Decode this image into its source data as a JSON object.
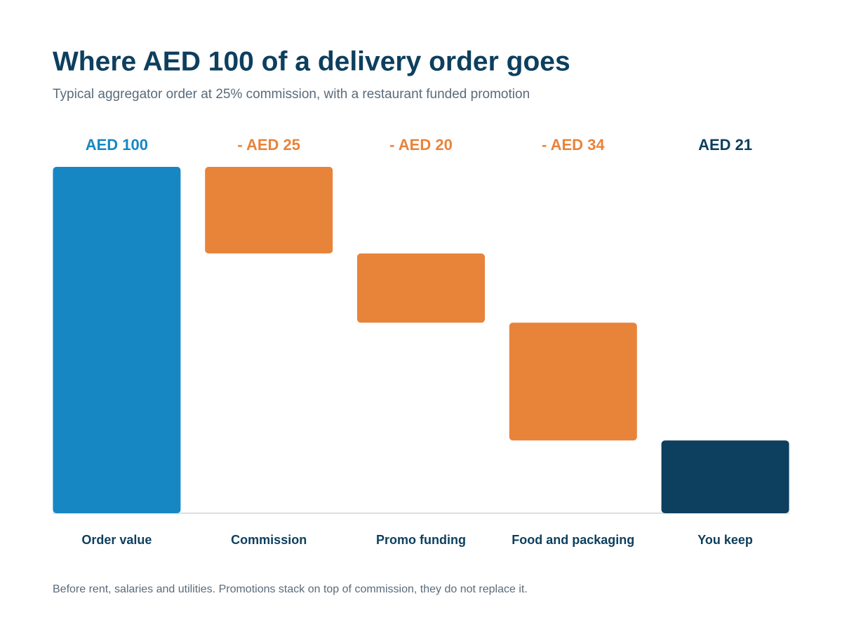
{
  "chart_data": {
    "type": "waterfall",
    "title": "Where AED 100 of a delivery order goes",
    "subtitle": "Typical aggregator order at 25% commission, with a restaurant funded promotion",
    "categories": [
      "Order value",
      "Commission",
      "Promo funding",
      "Food and packaging",
      "You keep"
    ],
    "values": [
      100,
      -25,
      -20,
      -34,
      21
    ],
    "value_labels": [
      "AED 100",
      "- AED 25",
      "- AED 20",
      "- AED 34",
      "AED 21"
    ],
    "measures": [
      "absolute",
      "relative",
      "relative",
      "relative",
      "total"
    ],
    "colors": [
      "#1787c4",
      "#e8833a",
      "#e8833a",
      "#e8833a",
      "#0d3f5e"
    ],
    "ylim": [
      0,
      100
    ],
    "footnote": "Before rent, salaries and utilities. Promotions stack on top of commission, they do not replace it."
  }
}
